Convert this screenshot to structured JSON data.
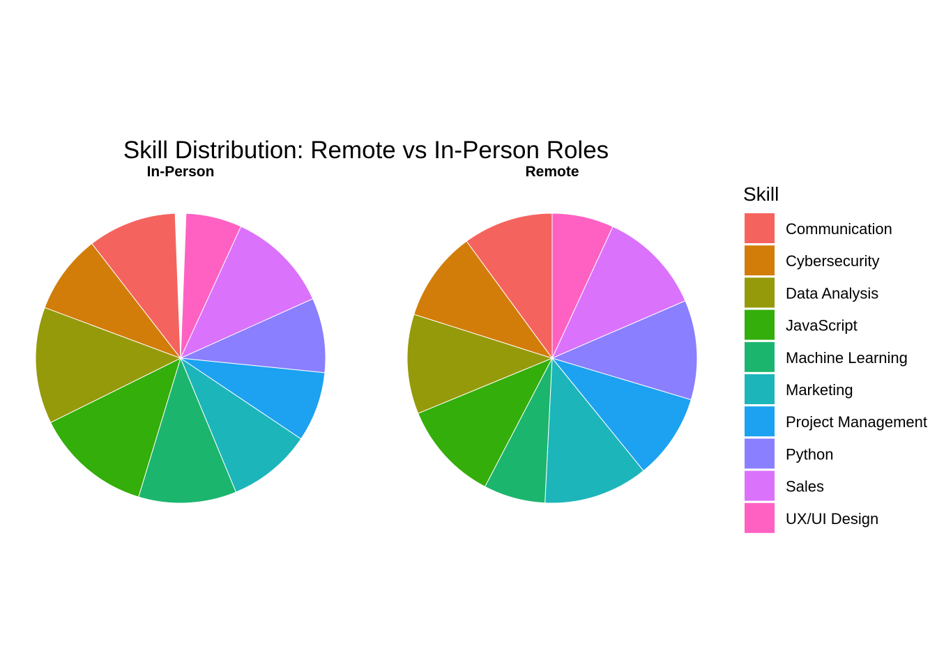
{
  "chart_data": {
    "type": "pie",
    "title": "Skill Distribution: Remote vs In-Person Roles",
    "legend": {
      "title": "Skill",
      "position": "right"
    },
    "categories": [
      "Communication",
      "Cybersecurity",
      "Data Analysis",
      "JavaScript",
      "Machine Learning",
      "Marketing",
      "Project Management",
      "Python",
      "Sales",
      "UX/UI Design"
    ],
    "colors": [
      "#F8766D",
      "#D39200",
      "#93AA00",
      "#00BA38",
      "#00C19F",
      "#00B9E3",
      "#619CFF",
      "#DB72FB",
      "#FF61C3",
      "#FF61C3"
    ],
    "series": [
      {
        "name": "In-Person",
        "order": [
          "UX/UI Design",
          "Sales",
          "Python",
          "Project Management",
          "Marketing",
          "Machine Learning",
          "JavaScript",
          "Data Analysis",
          "Cybersecurity",
          "Communication"
        ],
        "values": [
          6.0,
          11.0,
          8.0,
          7.5,
          9.0,
          10.5,
          12.5,
          12.5,
          8.5,
          9.5
        ]
      },
      {
        "name": "Remote",
        "order": [
          "UX/UI Design",
          "Sales",
          "Python",
          "Project Management",
          "Marketing",
          "Machine Learning",
          "JavaScript",
          "Data Analysis",
          "Cybersecurity",
          "Communication"
        ],
        "values": [
          6.5,
          11.0,
          10.5,
          9.0,
          11.0,
          6.5,
          10.5,
          10.5,
          9.5,
          9.5
        ]
      }
    ]
  }
}
